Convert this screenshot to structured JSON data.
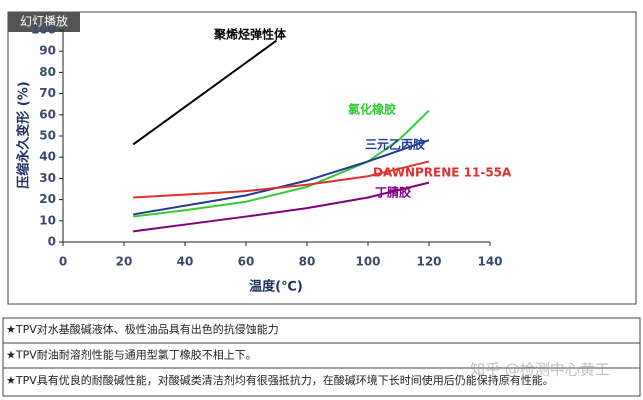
{
  "badge": "幻灯播放",
  "chart_data": {
    "type": "line",
    "xlabel": "温度(℃)",
    "ylabel": "压缩永久变形 (%)",
    "xlim": [
      0,
      140
    ],
    "xticks": [
      0,
      20,
      40,
      60,
      80,
      100,
      120,
      140
    ],
    "ylim": [
      0,
      100
    ],
    "yticks": [
      0,
      10,
      20,
      30,
      40,
      50,
      60,
      70,
      80,
      90,
      100
    ],
    "series": [
      {
        "name": "聚烯烃弹性体",
        "color": "#000000",
        "x": [
          23,
          70
        ],
        "values": [
          46,
          95
        ]
      },
      {
        "name": "氯化橡胶",
        "color": "#33cc33",
        "x": [
          23,
          40,
          60,
          80,
          100,
          110,
          120
        ],
        "values": [
          12,
          15,
          19,
          26,
          38,
          48,
          62
        ]
      },
      {
        "name": "三元乙丙胶",
        "color": "#1f3a93",
        "x": [
          23,
          60,
          80,
          100,
          120
        ],
        "values": [
          13,
          22,
          29,
          38,
          48
        ]
      },
      {
        "name": "DAWNPRENE 11-55A",
        "color": "#e0302f",
        "x": [
          23,
          60,
          80,
          100,
          120
        ],
        "values": [
          21,
          24,
          27,
          31,
          38
        ]
      },
      {
        "name": "丁腈胶",
        "color": "#800080",
        "x": [
          23,
          60,
          80,
          100,
          120
        ],
        "values": [
          5,
          12,
          16,
          21,
          28
        ]
      }
    ]
  },
  "notes": [
    "★TPV对水基酸碱液体、极性油品具有出色的抗侵蚀能力",
    "★TPV耐油耐溶剂性能与通用型氯丁橡胶不相上下。",
    "★TPV具有优良的耐酸碱性能，对酸碱类清洁剂均有很强抵抗力，在酸碱环境下长时间使用后仍能保持原有性能。"
  ],
  "watermark": "知乎 @检测中心黄工"
}
